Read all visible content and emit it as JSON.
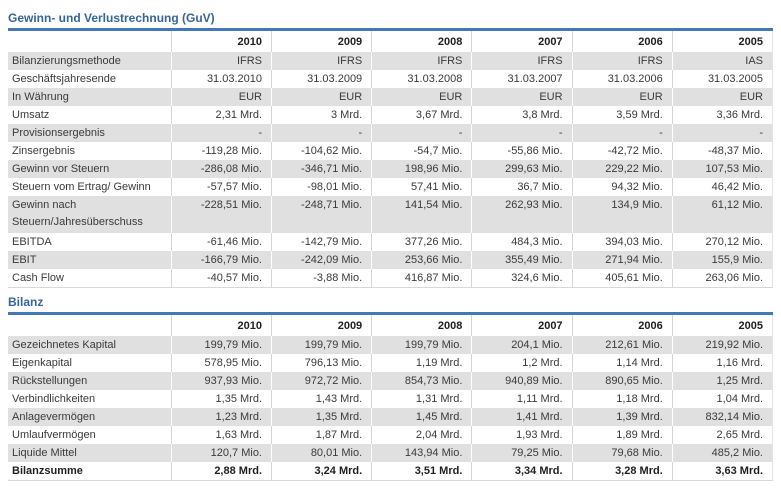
{
  "theme": {
    "title_blue": "#34659d",
    "rule_blue": "#4577b7",
    "stripe_gray": "#e0e0e0",
    "text_color": "#3a3a3a"
  },
  "guv": {
    "title": "Gewinn- und Verlustrechnung (GuV)",
    "years": [
      "2010",
      "2009",
      "2008",
      "2007",
      "2006",
      "2005"
    ],
    "rows": [
      {
        "label": "Bilanzierungsmethode",
        "values": [
          "IFRS",
          "IFRS",
          "IFRS",
          "IFRS",
          "IFRS",
          "IAS"
        ]
      },
      {
        "label": "Geschäftsjahresende",
        "values": [
          "31.03.2010",
          "31.03.2009",
          "31.03.2008",
          "31.03.2007",
          "31.03.2006",
          "31.03.2005"
        ]
      },
      {
        "label": "In Währung",
        "values": [
          "EUR",
          "EUR",
          "EUR",
          "EUR",
          "EUR",
          "EUR"
        ]
      },
      {
        "label": "Umsatz",
        "values": [
          "2,31 Mrd.",
          "3 Mrd.",
          "3,67 Mrd.",
          "3,8 Mrd.",
          "3,59 Mrd.",
          "3,36 Mrd."
        ]
      },
      {
        "label": "Provisionsergebnis",
        "values": [
          "-",
          "-",
          "-",
          "-",
          "-",
          "-"
        ]
      },
      {
        "label": "Zinsergebnis",
        "values": [
          "-119,28 Mio.",
          "-104,62 Mio.",
          "-54,7 Mio.",
          "-55,86 Mio.",
          "-42,72 Mio.",
          "-48,37 Mio."
        ]
      },
      {
        "label": "Gewinn vor Steuern",
        "values": [
          "-286,08 Mio.",
          "-346,71 Mio.",
          "198,96 Mio.",
          "299,63 Mio.",
          "229,22 Mio.",
          "107,53 Mio."
        ]
      },
      {
        "label": "Steuern vom Ertrag/ Gewinn",
        "values": [
          "-57,57 Mio.",
          "-98,01 Mio.",
          "57,41 Mio.",
          "36,7 Mio.",
          "94,32 Mio.",
          "46,42 Mio."
        ]
      },
      {
        "label": "Gewinn nach Steuern/Jahresüberschuss",
        "values": [
          "-228,51 Mio.",
          "-248,71 Mio.",
          "141,54 Mio.",
          "262,93 Mio.",
          "134,9 Mio.",
          "61,12 Mio."
        ],
        "two_line": true
      },
      {
        "label": "EBITDA",
        "values": [
          "-61,46 Mio.",
          "-142,79 Mio.",
          "377,26 Mio.",
          "484,3 Mio.",
          "394,03 Mio.",
          "270,12 Mio."
        ]
      },
      {
        "label": "EBIT",
        "values": [
          "-166,79 Mio.",
          "-242,09 Mio.",
          "253,66 Mio.",
          "355,49 Mio.",
          "271,94 Mio.",
          "155,9 Mio."
        ]
      },
      {
        "label": "Cash Flow",
        "values": [
          "-40,57 Mio.",
          "-3,88 Mio.",
          "416,87 Mio.",
          "324,6 Mio.",
          "405,61 Mio.",
          "263,06 Mio."
        ]
      }
    ]
  },
  "bilanz": {
    "title": "Bilanz",
    "years": [
      "2010",
      "2009",
      "2008",
      "2007",
      "2006",
      "2005"
    ],
    "rows": [
      {
        "label": "Gezeichnetes Kapital",
        "values": [
          "199,79 Mio.",
          "199,79 Mio.",
          "199,79 Mio.",
          "204,1 Mio.",
          "212,61 Mio.",
          "219,92 Mio."
        ]
      },
      {
        "label": "Eigenkapital",
        "values": [
          "578,95 Mio.",
          "796,13 Mio.",
          "1,19 Mrd.",
          "1,2 Mrd.",
          "1,14 Mrd.",
          "1,16 Mrd."
        ]
      },
      {
        "label": "Rückstellungen",
        "values": [
          "937,93 Mio.",
          "972,72 Mio.",
          "854,73 Mio.",
          "940,89 Mio.",
          "890,65 Mio.",
          "1,25 Mrd."
        ]
      },
      {
        "label": "Verbindlichkeiten",
        "values": [
          "1,35 Mrd.",
          "1,43 Mrd.",
          "1,31 Mrd.",
          "1,11 Mrd.",
          "1,18 Mrd.",
          "1,04 Mrd."
        ]
      },
      {
        "label": "Anlagevermögen",
        "values": [
          "1,23 Mrd.",
          "1,35 Mrd.",
          "1,45 Mrd.",
          "1,41 Mrd.",
          "1,39 Mrd.",
          "832,14 Mio."
        ]
      },
      {
        "label": "Umlaufvermögen",
        "values": [
          "1,63 Mrd.",
          "1,87 Mrd.",
          "2,04 Mrd.",
          "1,93 Mrd.",
          "1,89 Mrd.",
          "2,65 Mrd."
        ]
      },
      {
        "label": "Liquide Mittel",
        "values": [
          "120,7 Mio.",
          "80,01 Mio.",
          "143,94 Mio.",
          "79,25 Mio.",
          "79,68 Mio.",
          "485,2 Mio."
        ]
      },
      {
        "label": "Bilanzsumme",
        "values": [
          "2,88 Mrd.",
          "3,24 Mrd.",
          "3,51 Mrd.",
          "3,34 Mrd.",
          "3,28 Mrd.",
          "3,63 Mrd."
        ],
        "bold": true
      }
    ]
  }
}
